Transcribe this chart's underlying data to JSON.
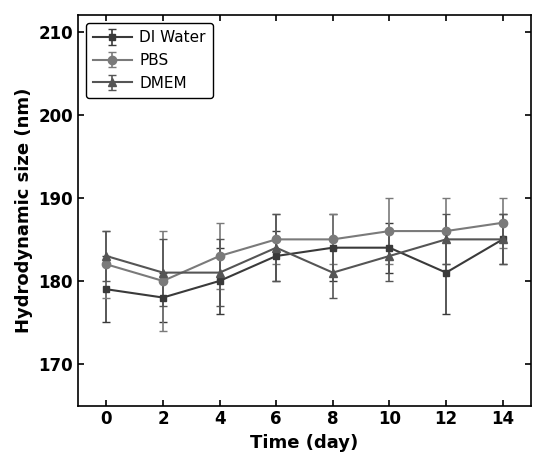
{
  "x": [
    0,
    2,
    4,
    6,
    8,
    10,
    12,
    14
  ],
  "di_water_y": [
    179,
    178,
    180,
    183,
    184,
    184,
    181,
    185
  ],
  "di_water_err": [
    4,
    3,
    4,
    3,
    4,
    3,
    5,
    3
  ],
  "pbs_y": [
    182,
    180,
    183,
    185,
    185,
    186,
    186,
    187
  ],
  "pbs_err": [
    4,
    6,
    4,
    3,
    3,
    4,
    4,
    3
  ],
  "dmem_y": [
    183,
    181,
    181,
    184,
    181,
    183,
    185,
    185
  ],
  "dmem_err": [
    3,
    4,
    4,
    4,
    3,
    3,
    3,
    3
  ],
  "line_color_di": "#3a3a3a",
  "line_color_pbs": "#7a7a7a",
  "line_color_dmem": "#555555",
  "xlabel": "Time (day)",
  "ylabel": "Hydrodynamic size (nm)",
  "ylim": [
    165,
    212
  ],
  "yticks": [
    170,
    180,
    190,
    200,
    210
  ],
  "xticks": [
    0,
    2,
    4,
    6,
    8,
    10,
    12,
    14
  ],
  "legend_labels": [
    "DI Water",
    "PBS",
    "DMEM"
  ],
  "title_fontsize": 12,
  "axis_fontsize": 13,
  "tick_fontsize": 12,
  "legend_fontsize": 11
}
